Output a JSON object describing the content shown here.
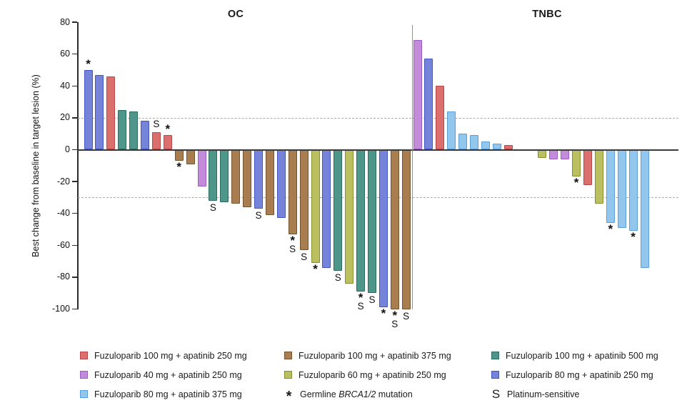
{
  "chart_data": {
    "type": "bar",
    "subtype": "waterfall",
    "ylabel": "Best change from baseline in target lesion (%)",
    "ylim": [
      -100,
      80
    ],
    "yticks": [
      80,
      60,
      40,
      20,
      0,
      -20,
      -40,
      -60,
      -80,
      -100
    ],
    "reference_lines": [
      20,
      -30
    ],
    "grid": "dashed reference lines at +20% and -30% only",
    "legend_position": "bottom",
    "series_colors": {
      "fz100_ap250": {
        "name": "Fuzuloparib 100 mg + apatinib 250 mg",
        "fill": "#DA6F6D",
        "edge": "#B94745"
      },
      "fz40_ap250": {
        "name": "Fuzuloparib 40 mg + apatinib 250 mg",
        "fill": "#C38CDB",
        "edge": "#9D59C4"
      },
      "fz80_ap375": {
        "name": "Fuzuloparib 80 mg + apatinib 375 mg",
        "fill": "#93C6ED",
        "edge": "#5C9FD8"
      },
      "fz100_ap375": {
        "name": "Fuzuloparib 100 mg + apatinib 375 mg",
        "fill": "#A87E50",
        "edge": "#77522B"
      },
      "fz60_ap250": {
        "name": "Fuzuloparib 60 mg + apatinib 250 mg",
        "fill": "#BAC060",
        "edge": "#878E2F"
      },
      "fz100_ap500": {
        "name": "Fuzuloparib 100 mg + apatinib 500 mg",
        "fill": "#4F968A",
        "edge": "#2B6B60"
      },
      "fz80_ap250": {
        "name": "Fuzuloparib 80 mg + apatinib 250 mg",
        "fill": "#7584D9",
        "edge": "#4355BE"
      }
    },
    "marker_meanings": {
      "*": "Germline BRCA1/2 mutation",
      "S": "Platinum-sensitive"
    },
    "groups": [
      {
        "name": "OC",
        "bars": [
          {
            "value": 50,
            "series": "fz80_ap250",
            "mark": "*"
          },
          {
            "value": 47,
            "series": "fz80_ap250",
            "mark": ""
          },
          {
            "value": 46,
            "series": "fz100_ap250",
            "mark": ""
          },
          {
            "value": 25,
            "series": "fz100_ap500",
            "mark": ""
          },
          {
            "value": 24,
            "series": "fz100_ap500",
            "mark": ""
          },
          {
            "value": 18,
            "series": "fz80_ap250",
            "mark": ""
          },
          {
            "value": 11,
            "series": "fz100_ap250",
            "mark": "S"
          },
          {
            "value": 9,
            "series": "fz100_ap250",
            "mark": "*"
          },
          {
            "value": -7,
            "series": "fz100_ap375",
            "mark": "*"
          },
          {
            "value": -9,
            "series": "fz100_ap375",
            "mark": ""
          },
          {
            "value": -23,
            "series": "fz40_ap250",
            "mark": ""
          },
          {
            "value": -32,
            "series": "fz100_ap500",
            "mark": "S"
          },
          {
            "value": -33,
            "series": "fz100_ap500",
            "mark": ""
          },
          {
            "value": -34,
            "series": "fz100_ap375",
            "mark": ""
          },
          {
            "value": -36,
            "series": "fz100_ap375",
            "mark": ""
          },
          {
            "value": -37,
            "series": "fz80_ap250",
            "mark": "S"
          },
          {
            "value": -41,
            "series": "fz100_ap375",
            "mark": ""
          },
          {
            "value": -43,
            "series": "fz80_ap250",
            "mark": ""
          },
          {
            "value": -53,
            "series": "fz100_ap375",
            "mark": "*S"
          },
          {
            "value": -63,
            "series": "fz100_ap375",
            "mark": "S"
          },
          {
            "value": -71,
            "series": "fz60_ap250",
            "mark": "*"
          },
          {
            "value": -74,
            "series": "fz80_ap250",
            "mark": ""
          },
          {
            "value": -76,
            "series": "fz100_ap500",
            "mark": "S"
          },
          {
            "value": -84,
            "series": "fz60_ap250",
            "mark": ""
          },
          {
            "value": -89,
            "series": "fz100_ap500",
            "mark": "*S"
          },
          {
            "value": -90,
            "series": "fz100_ap500",
            "mark": "S"
          },
          {
            "value": -99,
            "series": "fz80_ap250",
            "mark": "*"
          },
          {
            "value": -100,
            "series": "fz100_ap375",
            "mark": "*S"
          },
          {
            "value": -100,
            "series": "fz100_ap375",
            "mark": "S"
          }
        ]
      },
      {
        "name": "TNBC",
        "bars": [
          {
            "value": 69,
            "series": "fz40_ap250",
            "mark": ""
          },
          {
            "value": 57,
            "series": "fz80_ap250",
            "mark": ""
          },
          {
            "value": 40,
            "series": "fz100_ap250",
            "mark": ""
          },
          {
            "value": 24,
            "series": "fz80_ap375",
            "mark": ""
          },
          {
            "value": 10,
            "series": "fz80_ap375",
            "mark": ""
          },
          {
            "value": 9,
            "series": "fz80_ap375",
            "mark": ""
          },
          {
            "value": 5,
            "series": "fz80_ap375",
            "mark": ""
          },
          {
            "value": 4,
            "series": "fz80_ap375",
            "mark": ""
          },
          {
            "value": 3,
            "series": "fz100_ap250",
            "mark": ""
          },
          {
            "value": 0,
            "series": null,
            "mark": ""
          },
          {
            "value": 0,
            "series": null,
            "mark": ""
          },
          {
            "value": -5,
            "series": "fz60_ap250",
            "mark": ""
          },
          {
            "value": -6,
            "series": "fz40_ap250",
            "mark": ""
          },
          {
            "value": -6,
            "series": "fz40_ap250",
            "mark": ""
          },
          {
            "value": -17,
            "series": "fz60_ap250",
            "mark": "*"
          },
          {
            "value": -22,
            "series": "fz100_ap250",
            "mark": ""
          },
          {
            "value": -34,
            "series": "fz60_ap250",
            "mark": ""
          },
          {
            "value": -46,
            "series": "fz80_ap375",
            "mark": "*"
          },
          {
            "value": -49,
            "series": "fz80_ap375",
            "mark": ""
          },
          {
            "value": -51,
            "series": "fz80_ap375",
            "mark": "*"
          },
          {
            "value": -74,
            "series": "fz80_ap375",
            "mark": ""
          }
        ]
      }
    ]
  },
  "legend": {
    "columns": [
      {
        "items": [
          {
            "series": "fz100_ap250",
            "label": "Fuzuloparib 100 mg + apatinib 250 mg"
          },
          {
            "series": "fz40_ap250",
            "label": "Fuzuloparib 40 mg + apatinib 250 mg"
          },
          {
            "series": "fz80_ap375",
            "label": "Fuzuloparib 80 mg + apatinib 375 mg"
          }
        ]
      },
      {
        "items": [
          {
            "series": "fz100_ap375",
            "label": "Fuzuloparib 100 mg + apatinib 375 mg"
          },
          {
            "series": "fz60_ap250",
            "label": "Fuzuloparib 60 mg + apatinib 250 mg"
          },
          {
            "symbol": "*",
            "parts": [
              {
                "t": "Germline "
              },
              {
                "t": "BRCA1/2",
                "italic": true
              },
              {
                "t": " mutation"
              }
            ]
          }
        ]
      },
      {
        "items": [
          {
            "series": "fz100_ap500",
            "label": "Fuzuloparib 100 mg + apatinib 500 mg"
          },
          {
            "series": "fz80_ap250",
            "label": "Fuzuloparib 80 mg + apatinib 250 mg"
          },
          {
            "symbol": "S",
            "label": "Platinum-sensitive"
          }
        ]
      }
    ]
  }
}
